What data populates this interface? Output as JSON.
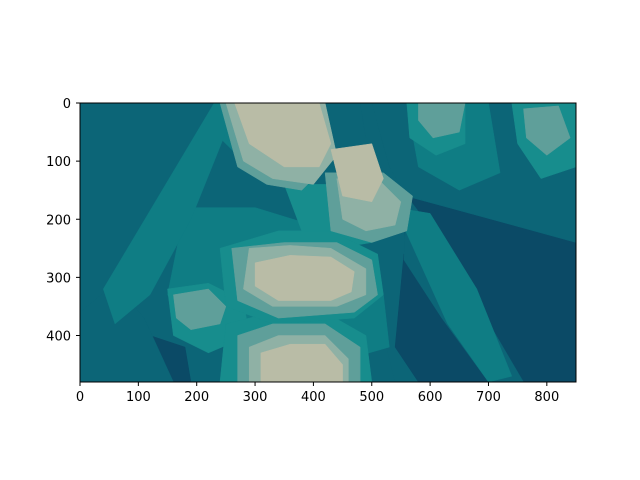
{
  "chart_data": {
    "type": "heatmap",
    "title": "",
    "xlabel": "",
    "ylabel": "",
    "xlim": [
      0,
      850
    ],
    "ylim": [
      480,
      0
    ],
    "x_ticks": [
      0,
      100,
      200,
      300,
      400,
      500,
      600,
      700,
      800
    ],
    "y_ticks": [
      0,
      100,
      200,
      300,
      400
    ],
    "x_tick_labels": [
      "0",
      "100",
      "200",
      "300",
      "400",
      "500",
      "600",
      "700",
      "800"
    ],
    "y_tick_labels": [
      "0",
      "100",
      "200",
      "300",
      "400"
    ],
    "grid": false,
    "legend": "none",
    "levels": [
      {
        "color": "#0b4a66"
      },
      {
        "color": "#0c6577"
      },
      {
        "color": "#0f7d84"
      },
      {
        "color": "#178d8d"
      },
      {
        "color": "#5f9f9a"
      },
      {
        "color": "#8fb1a5"
      },
      {
        "color": "#b9bca6"
      }
    ],
    "regions": [
      {
        "level": 0,
        "points": [
          [
            555,
            160
          ],
          [
            850,
            240
          ],
          [
            850,
            480
          ],
          [
            690,
            480
          ],
          [
            620,
            400
          ],
          [
            560,
            330
          ]
        ]
      },
      {
        "level": 0,
        "points": [
          [
            555,
            260
          ],
          [
            600,
            300
          ],
          [
            650,
            370
          ],
          [
            700,
            480
          ],
          [
            580,
            480
          ],
          [
            540,
            420
          ]
        ]
      },
      {
        "level": 0,
        "points": [
          [
            0,
            200
          ],
          [
            40,
            210
          ],
          [
            60,
            280
          ],
          [
            0,
            300
          ]
        ]
      },
      {
        "level": 0,
        "points": [
          [
            0,
            400
          ],
          [
            60,
            380
          ],
          [
            80,
            420
          ],
          [
            50,
            480
          ],
          [
            0,
            480
          ]
        ]
      },
      {
        "level": 0,
        "points": [
          [
            120,
            400
          ],
          [
            180,
            420
          ],
          [
            190,
            480
          ],
          [
            110,
            480
          ]
        ]
      },
      {
        "level": 1,
        "points": [
          [
            0,
            0
          ],
          [
            270,
            0
          ],
          [
            210,
            100
          ],
          [
            100,
            240
          ],
          [
            40,
            330
          ],
          [
            0,
            360
          ]
        ]
      },
      {
        "level": 1,
        "points": [
          [
            400,
            0
          ],
          [
            480,
            0
          ],
          [
            490,
            60
          ],
          [
            450,
            90
          ],
          [
            410,
            60
          ]
        ]
      },
      {
        "level": 1,
        "points": [
          [
            500,
            0
          ],
          [
            850,
            0
          ],
          [
            850,
            240
          ],
          [
            560,
            160
          ],
          [
            530,
            110
          ]
        ]
      },
      {
        "level": 1,
        "points": [
          [
            0,
            360
          ],
          [
            60,
            310
          ],
          [
            110,
            370
          ],
          [
            160,
            480
          ],
          [
            0,
            480
          ]
        ]
      },
      {
        "level": 1,
        "points": [
          [
            560,
            160
          ],
          [
            620,
            240
          ],
          [
            690,
            360
          ],
          [
            760,
            480
          ],
          [
            700,
            480
          ],
          [
            620,
            370
          ],
          [
            555,
            270
          ]
        ]
      },
      {
        "level": 1,
        "points": [
          [
            340,
            380
          ],
          [
            420,
            370
          ],
          [
            520,
            400
          ],
          [
            540,
            480
          ],
          [
            330,
            480
          ]
        ]
      },
      {
        "level": 2,
        "points": [
          [
            260,
            0
          ],
          [
            400,
            0
          ],
          [
            420,
            80
          ],
          [
            360,
            130
          ],
          [
            290,
            110
          ],
          [
            240,
            60
          ]
        ]
      },
      {
        "level": 2,
        "points": [
          [
            180,
            180
          ],
          [
            300,
            180
          ],
          [
            430,
            220
          ],
          [
            480,
            280
          ],
          [
            520,
            330
          ],
          [
            530,
            420
          ],
          [
            460,
            440
          ],
          [
            300,
            440
          ],
          [
            200,
            400
          ],
          [
            150,
            330
          ]
        ]
      },
      {
        "level": 2,
        "points": [
          [
            230,
            0
          ],
          [
            270,
            0
          ],
          [
            190,
            200
          ],
          [
            120,
            330
          ],
          [
            60,
            380
          ],
          [
            40,
            320
          ]
        ]
      },
      {
        "level": 2,
        "points": [
          [
            540,
            180
          ],
          [
            600,
            190
          ],
          [
            680,
            320
          ],
          [
            740,
            470
          ],
          [
            700,
            480
          ],
          [
            630,
            380
          ]
        ]
      },
      {
        "level": 2,
        "points": [
          [
            560,
            0
          ],
          [
            700,
            0
          ],
          [
            720,
            120
          ],
          [
            650,
            150
          ],
          [
            580,
            110
          ]
        ]
      },
      {
        "level": 3,
        "points": [
          [
            560,
            0
          ],
          [
            660,
            0
          ],
          [
            660,
            70
          ],
          [
            610,
            90
          ],
          [
            565,
            60
          ]
        ]
      },
      {
        "level": 3,
        "points": [
          [
            740,
            0
          ],
          [
            850,
            0
          ],
          [
            850,
            110
          ],
          [
            790,
            130
          ],
          [
            750,
            70
          ]
        ]
      },
      {
        "level": 3,
        "points": [
          [
            350,
            140
          ],
          [
            440,
            140
          ],
          [
            500,
            160
          ],
          [
            530,
            200
          ],
          [
            500,
            240
          ],
          [
            440,
            250
          ],
          [
            380,
            220
          ]
        ]
      },
      {
        "level": 3,
        "points": [
          [
            150,
            320
          ],
          [
            220,
            310
          ],
          [
            280,
            340
          ],
          [
            290,
            400
          ],
          [
            220,
            430
          ],
          [
            160,
            400
          ]
        ]
      },
      {
        "level": 3,
        "points": [
          [
            250,
            380
          ],
          [
            330,
            360
          ],
          [
            420,
            360
          ],
          [
            490,
            400
          ],
          [
            500,
            480
          ],
          [
            240,
            480
          ]
        ]
      },
      {
        "level": 3,
        "points": [
          [
            240,
            250
          ],
          [
            340,
            220
          ],
          [
            430,
            220
          ],
          [
            510,
            260
          ],
          [
            520,
            330
          ],
          [
            470,
            370
          ],
          [
            330,
            380
          ],
          [
            250,
            350
          ]
        ]
      },
      {
        "level": 4,
        "points": [
          [
            240,
            0
          ],
          [
            420,
            0
          ],
          [
            430,
            100
          ],
          [
            380,
            150
          ],
          [
            320,
            140
          ],
          [
            270,
            110
          ]
        ]
      },
      {
        "level": 4,
        "points": [
          [
            420,
            120
          ],
          [
            520,
            120
          ],
          [
            570,
            160
          ],
          [
            560,
            220
          ],
          [
            500,
            240
          ],
          [
            430,
            220
          ]
        ]
      },
      {
        "level": 4,
        "points": [
          [
            580,
            0
          ],
          [
            660,
            0
          ],
          [
            650,
            50
          ],
          [
            605,
            60
          ],
          [
            580,
            30
          ]
        ]
      },
      {
        "level": 4,
        "points": [
          [
            760,
            10
          ],
          [
            820,
            5
          ],
          [
            840,
            60
          ],
          [
            800,
            90
          ],
          [
            765,
            60
          ]
        ]
      },
      {
        "level": 4,
        "points": [
          [
            160,
            330
          ],
          [
            220,
            320
          ],
          [
            250,
            350
          ],
          [
            240,
            380
          ],
          [
            190,
            390
          ],
          [
            165,
            370
          ]
        ]
      },
      {
        "level": 4,
        "points": [
          [
            260,
            250
          ],
          [
            350,
            240
          ],
          [
            440,
            240
          ],
          [
            500,
            270
          ],
          [
            510,
            330
          ],
          [
            470,
            360
          ],
          [
            340,
            370
          ],
          [
            270,
            340
          ]
        ]
      },
      {
        "level": 4,
        "points": [
          [
            270,
            400
          ],
          [
            330,
            380
          ],
          [
            420,
            380
          ],
          [
            480,
            420
          ],
          [
            480,
            480
          ],
          [
            270,
            480
          ]
        ]
      },
      {
        "level": 5,
        "points": [
          [
            250,
            0
          ],
          [
            420,
            0
          ],
          [
            440,
            90
          ],
          [
            400,
            140
          ],
          [
            330,
            130
          ],
          [
            280,
            100
          ]
        ]
      },
      {
        "level": 5,
        "points": [
          [
            440,
            130
          ],
          [
            510,
            130
          ],
          [
            550,
            170
          ],
          [
            540,
            210
          ],
          [
            490,
            220
          ],
          [
            450,
            200
          ]
        ]
      },
      {
        "level": 5,
        "points": [
          [
            290,
            250
          ],
          [
            360,
            245
          ],
          [
            430,
            250
          ],
          [
            490,
            285
          ],
          [
            490,
            330
          ],
          [
            440,
            350
          ],
          [
            330,
            350
          ],
          [
            280,
            320
          ]
        ]
      },
      {
        "level": 5,
        "points": [
          [
            290,
            420
          ],
          [
            340,
            400
          ],
          [
            420,
            400
          ],
          [
            460,
            440
          ],
          [
            460,
            480
          ],
          [
            290,
            480
          ]
        ]
      },
      {
        "level": 6,
        "points": [
          [
            265,
            0
          ],
          [
            410,
            0
          ],
          [
            430,
            70
          ],
          [
            410,
            110
          ],
          [
            350,
            110
          ],
          [
            290,
            70
          ]
        ]
      },
      {
        "level": 6,
        "points": [
          [
            430,
            80
          ],
          [
            500,
            70
          ],
          [
            520,
            130
          ],
          [
            500,
            170
          ],
          [
            450,
            160
          ]
        ]
      },
      {
        "level": 6,
        "points": [
          [
            300,
            275
          ],
          [
            360,
            262
          ],
          [
            430,
            265
          ],
          [
            470,
            290
          ],
          [
            465,
            325
          ],
          [
            430,
            340
          ],
          [
            340,
            340
          ],
          [
            300,
            315
          ]
        ]
      },
      {
        "level": 6,
        "points": [
          [
            310,
            430
          ],
          [
            360,
            415
          ],
          [
            420,
            415
          ],
          [
            450,
            450
          ],
          [
            450,
            480
          ],
          [
            310,
            480
          ]
        ]
      }
    ]
  }
}
